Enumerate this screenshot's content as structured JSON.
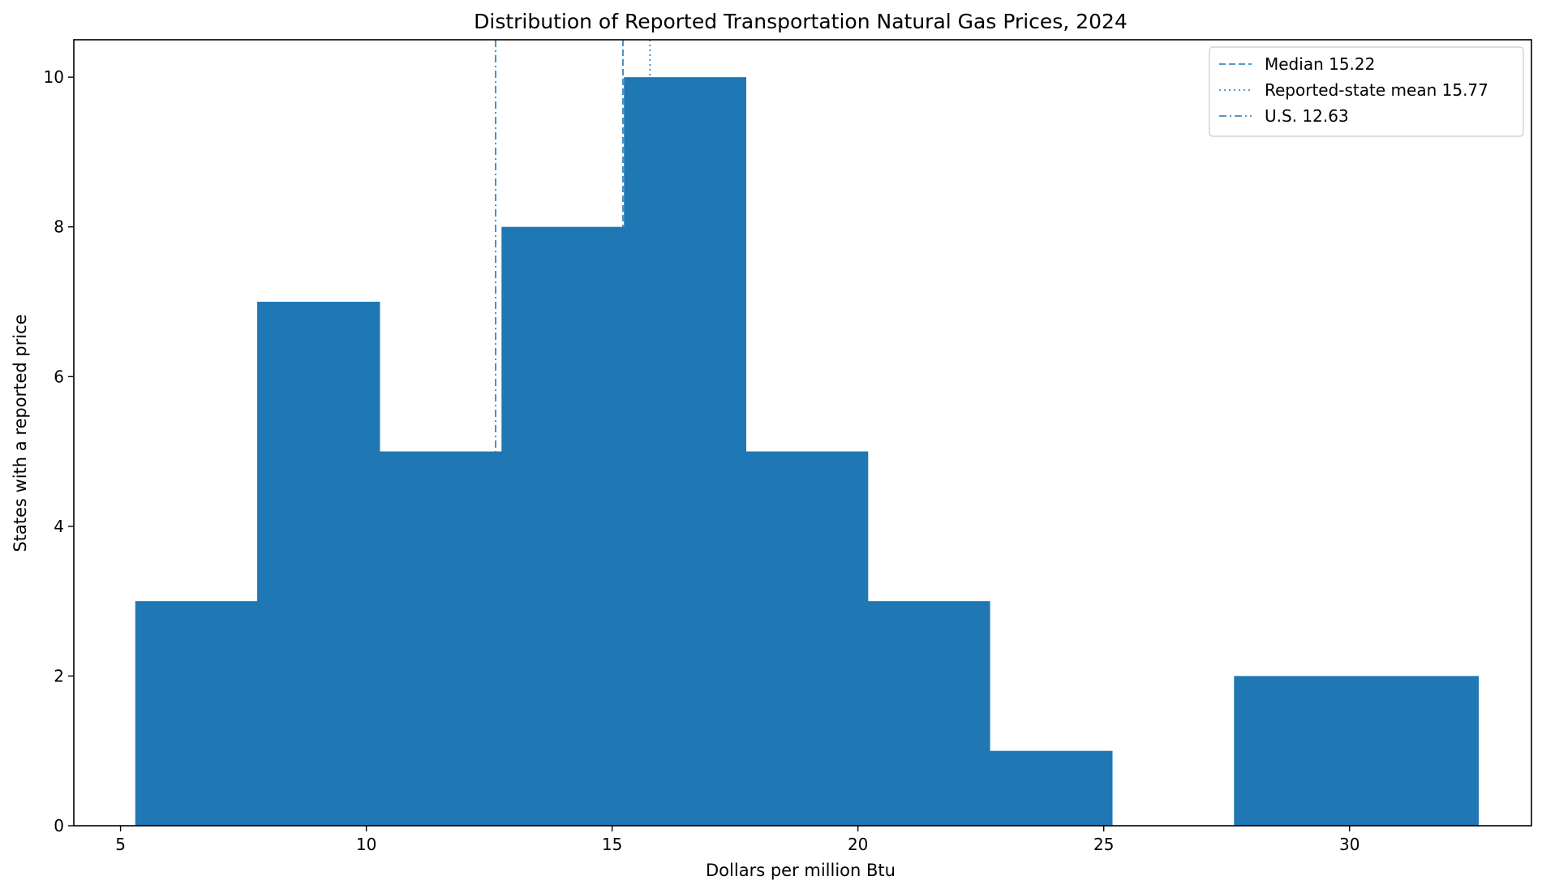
{
  "chart_data": {
    "type": "bar",
    "title": "Distribution of Reported Transportation Natural Gas Prices, 2024",
    "xlabel": "Dollars per million Btu",
    "ylabel": "States with a reported price",
    "xlim": [
      4.05,
      33.7
    ],
    "ylim": [
      0,
      10.5
    ],
    "x_ticks": [
      5,
      10,
      15,
      20,
      25,
      30
    ],
    "y_ticks": [
      0,
      2,
      4,
      6,
      8,
      10
    ],
    "bins": [
      {
        "start": 5.3,
        "end": 7.78,
        "count": 3
      },
      {
        "start": 7.78,
        "end": 10.27,
        "count": 7
      },
      {
        "start": 10.27,
        "end": 12.75,
        "count": 5
      },
      {
        "start": 12.75,
        "end": 15.24,
        "count": 8
      },
      {
        "start": 15.24,
        "end": 17.72,
        "count": 10
      },
      {
        "start": 17.72,
        "end": 20.2,
        "count": 5
      },
      {
        "start": 20.2,
        "end": 22.68,
        "count": 3
      },
      {
        "start": 22.68,
        "end": 25.17,
        "count": 1
      },
      {
        "start": 25.17,
        "end": 27.65,
        "count": 0
      },
      {
        "start": 27.65,
        "end": 30.13,
        "count": 2
      },
      {
        "start": 30.13,
        "end": 32.62,
        "count": 2
      }
    ],
    "bar_color": "#1f77b4",
    "reference_lines": [
      {
        "label": "Median 15.22",
        "value": 15.22,
        "style": "dashed"
      },
      {
        "label": "Reported-state mean 15.77",
        "value": 15.77,
        "style": "dotted"
      },
      {
        "label": "U.S. 12.63",
        "value": 12.63,
        "style": "dashdot"
      }
    ],
    "legend_position": "top-right",
    "grid": false
  }
}
